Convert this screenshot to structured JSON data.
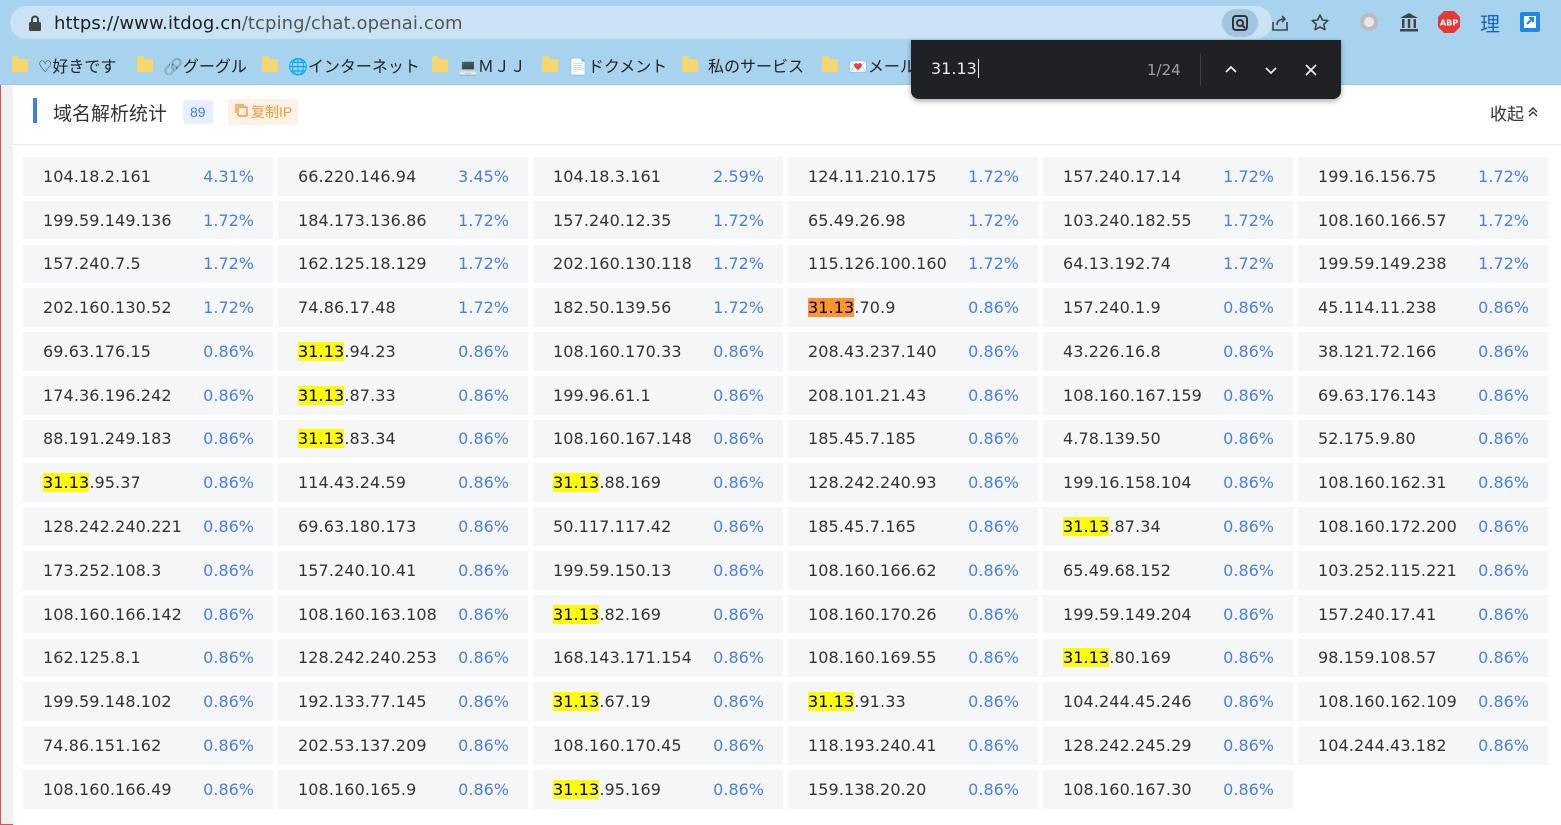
{
  "browser": {
    "url": "https://www.itdog.cn/tcping/chat.openai.com",
    "url_host": "https://www.itdog.cn",
    "url_path": "/tcping/chat.openai.com",
    "icons": [
      "lock-icon",
      "lens-icon",
      "share-icon",
      "star-icon",
      "circle-extension-icon",
      "bank-extension-icon",
      "adblock-icon",
      "li-extension-icon",
      "profile-extension-icon"
    ],
    "extensions": {
      "abp": "ABP",
      "li": "理"
    }
  },
  "bookmarks": [
    {
      "label": "♡好きです"
    },
    {
      "label": "🔗グーグル"
    },
    {
      "label": "🌐インターネット"
    },
    {
      "label": "💻ＭＪＪ"
    },
    {
      "label": "📄ドクメント"
    },
    {
      "label": "私のサービス"
    },
    {
      "label": "💌メール"
    }
  ],
  "find": {
    "query": "31.13",
    "match_count": "1/24"
  },
  "section": {
    "title": "域名解析统计",
    "count": "89",
    "copy_label": "复制IP",
    "collapse_label": "收起"
  },
  "entries": [
    {
      "prefix": "",
      "ip": "104.18.2.161",
      "pct": "4.31%"
    },
    {
      "prefix": "",
      "ip": "66.220.146.94",
      "pct": "3.45%"
    },
    {
      "prefix": "",
      "ip": "104.18.3.161",
      "pct": "2.59%"
    },
    {
      "prefix": "",
      "ip": "124.11.210.175",
      "pct": "1.72%"
    },
    {
      "prefix": "",
      "ip": "157.240.17.14",
      "pct": "1.72%"
    },
    {
      "prefix": "",
      "ip": "199.16.156.75",
      "pct": "1.72%"
    },
    {
      "prefix": "",
      "ip": "199.59.149.136",
      "pct": "1.72%"
    },
    {
      "prefix": "",
      "ip": "184.173.136.86",
      "pct": "1.72%"
    },
    {
      "prefix": "",
      "ip": "157.240.12.35",
      "pct": "1.72%"
    },
    {
      "prefix": "",
      "ip": "65.49.26.98",
      "pct": "1.72%"
    },
    {
      "prefix": "",
      "ip": "103.240.182.55",
      "pct": "1.72%"
    },
    {
      "prefix": "",
      "ip": "108.160.166.57",
      "pct": "1.72%"
    },
    {
      "prefix": "",
      "ip": "157.240.7.5",
      "pct": "1.72%"
    },
    {
      "prefix": "",
      "ip": "162.125.18.129",
      "pct": "1.72%"
    },
    {
      "prefix": "",
      "ip": "202.160.130.118",
      "pct": "1.72%"
    },
    {
      "prefix": "",
      "ip": "115.126.100.160",
      "pct": "1.72%"
    },
    {
      "prefix": "",
      "ip": "64.13.192.74",
      "pct": "1.72%"
    },
    {
      "prefix": "",
      "ip": "199.59.149.238",
      "pct": "1.72%"
    },
    {
      "prefix": "",
      "ip": "202.160.130.52",
      "pct": "1.72%"
    },
    {
      "prefix": "",
      "ip": "74.86.17.48",
      "pct": "1.72%"
    },
    {
      "prefix": "",
      "ip": "182.50.139.56",
      "pct": "1.72%"
    },
    {
      "prefix": "31.13",
      "ip": ".70.9",
      "pct": "0.86%",
      "current": true
    },
    {
      "prefix": "",
      "ip": "157.240.1.9",
      "pct": "0.86%"
    },
    {
      "prefix": "",
      "ip": "45.114.11.238",
      "pct": "0.86%"
    },
    {
      "prefix": "",
      "ip": "69.63.176.15",
      "pct": "0.86%"
    },
    {
      "prefix": "31.13",
      "ip": ".94.23",
      "pct": "0.86%"
    },
    {
      "prefix": "",
      "ip": "108.160.170.33",
      "pct": "0.86%"
    },
    {
      "prefix": "",
      "ip": "208.43.237.140",
      "pct": "0.86%"
    },
    {
      "prefix": "",
      "ip": "43.226.16.8",
      "pct": "0.86%"
    },
    {
      "prefix": "",
      "ip": "38.121.72.166",
      "pct": "0.86%"
    },
    {
      "prefix": "",
      "ip": "174.36.196.242",
      "pct": "0.86%"
    },
    {
      "prefix": "31.13",
      "ip": ".87.33",
      "pct": "0.86%"
    },
    {
      "prefix": "",
      "ip": "199.96.61.1",
      "pct": "0.86%"
    },
    {
      "prefix": "",
      "ip": "208.101.21.43",
      "pct": "0.86%"
    },
    {
      "prefix": "",
      "ip": "108.160.167.159",
      "pct": "0.86%"
    },
    {
      "prefix": "",
      "ip": "69.63.176.143",
      "pct": "0.86%"
    },
    {
      "prefix": "",
      "ip": "88.191.249.183",
      "pct": "0.86%"
    },
    {
      "prefix": "31.13",
      "ip": ".83.34",
      "pct": "0.86%"
    },
    {
      "prefix": "",
      "ip": "108.160.167.148",
      "pct": "0.86%"
    },
    {
      "prefix": "",
      "ip": "185.45.7.185",
      "pct": "0.86%"
    },
    {
      "prefix": "",
      "ip": "4.78.139.50",
      "pct": "0.86%"
    },
    {
      "prefix": "",
      "ip": "52.175.9.80",
      "pct": "0.86%"
    },
    {
      "prefix": "31.13",
      "ip": ".95.37",
      "pct": "0.86%"
    },
    {
      "prefix": "",
      "ip": "114.43.24.59",
      "pct": "0.86%"
    },
    {
      "prefix": "31.13",
      "ip": ".88.169",
      "pct": "0.86%"
    },
    {
      "prefix": "",
      "ip": "128.242.240.93",
      "pct": "0.86%"
    },
    {
      "prefix": "",
      "ip": "199.16.158.104",
      "pct": "0.86%"
    },
    {
      "prefix": "",
      "ip": "108.160.162.31",
      "pct": "0.86%"
    },
    {
      "prefix": "",
      "ip": "128.242.240.221",
      "pct": "0.86%"
    },
    {
      "prefix": "",
      "ip": "69.63.180.173",
      "pct": "0.86%"
    },
    {
      "prefix": "",
      "ip": "50.117.117.42",
      "pct": "0.86%"
    },
    {
      "prefix": "",
      "ip": "185.45.7.165",
      "pct": "0.86%"
    },
    {
      "prefix": "31.13",
      "ip": ".87.34",
      "pct": "0.86%"
    },
    {
      "prefix": "",
      "ip": "108.160.172.200",
      "pct": "0.86%"
    },
    {
      "prefix": "",
      "ip": "173.252.108.3",
      "pct": "0.86%"
    },
    {
      "prefix": "",
      "ip": "157.240.10.41",
      "pct": "0.86%"
    },
    {
      "prefix": "",
      "ip": "199.59.150.13",
      "pct": "0.86%"
    },
    {
      "prefix": "",
      "ip": "108.160.166.62",
      "pct": "0.86%"
    },
    {
      "prefix": "",
      "ip": "65.49.68.152",
      "pct": "0.86%"
    },
    {
      "prefix": "",
      "ip": "103.252.115.221",
      "pct": "0.86%"
    },
    {
      "prefix": "",
      "ip": "108.160.166.142",
      "pct": "0.86%"
    },
    {
      "prefix": "",
      "ip": "108.160.163.108",
      "pct": "0.86%"
    },
    {
      "prefix": "31.13",
      "ip": ".82.169",
      "pct": "0.86%"
    },
    {
      "prefix": "",
      "ip": "108.160.170.26",
      "pct": "0.86%"
    },
    {
      "prefix": "",
      "ip": "199.59.149.204",
      "pct": "0.86%"
    },
    {
      "prefix": "",
      "ip": "157.240.17.41",
      "pct": "0.86%"
    },
    {
      "prefix": "",
      "ip": "162.125.8.1",
      "pct": "0.86%"
    },
    {
      "prefix": "",
      "ip": "128.242.240.253",
      "pct": "0.86%"
    },
    {
      "prefix": "",
      "ip": "168.143.171.154",
      "pct": "0.86%"
    },
    {
      "prefix": "",
      "ip": "108.160.169.55",
      "pct": "0.86%"
    },
    {
      "prefix": "31.13",
      "ip": ".80.169",
      "pct": "0.86%"
    },
    {
      "prefix": "",
      "ip": "98.159.108.57",
      "pct": "0.86%"
    },
    {
      "prefix": "",
      "ip": "199.59.148.102",
      "pct": "0.86%"
    },
    {
      "prefix": "",
      "ip": "192.133.77.145",
      "pct": "0.86%"
    },
    {
      "prefix": "31.13",
      "ip": ".67.19",
      "pct": "0.86%"
    },
    {
      "prefix": "31.13",
      "ip": ".91.33",
      "pct": "0.86%"
    },
    {
      "prefix": "",
      "ip": "104.244.45.246",
      "pct": "0.86%"
    },
    {
      "prefix": "",
      "ip": "108.160.162.109",
      "pct": "0.86%"
    },
    {
      "prefix": "",
      "ip": "74.86.151.162",
      "pct": "0.86%"
    },
    {
      "prefix": "",
      "ip": "202.53.137.209",
      "pct": "0.86%"
    },
    {
      "prefix": "",
      "ip": "108.160.170.45",
      "pct": "0.86%"
    },
    {
      "prefix": "",
      "ip": "118.193.240.41",
      "pct": "0.86%"
    },
    {
      "prefix": "",
      "ip": "128.242.245.29",
      "pct": "0.86%"
    },
    {
      "prefix": "",
      "ip": "104.244.43.182",
      "pct": "0.86%"
    },
    {
      "prefix": "",
      "ip": "108.160.166.49",
      "pct": "0.86%"
    },
    {
      "prefix": "",
      "ip": "108.160.165.9",
      "pct": "0.86%"
    },
    {
      "prefix": "31.13",
      "ip": ".95.169",
      "pct": "0.86%"
    },
    {
      "prefix": "",
      "ip": "159.138.20.20",
      "pct": "0.86%"
    },
    {
      "prefix": "",
      "ip": "108.160.167.30",
      "pct": "0.86%"
    }
  ],
  "colors": {
    "accent": "#3d7fe0",
    "percent": "#4a80e0",
    "highlight": "#ffff00",
    "current_highlight": "#ff9632",
    "copy_button": "#f19a3e",
    "browser_chrome": "#a8d3ef"
  }
}
